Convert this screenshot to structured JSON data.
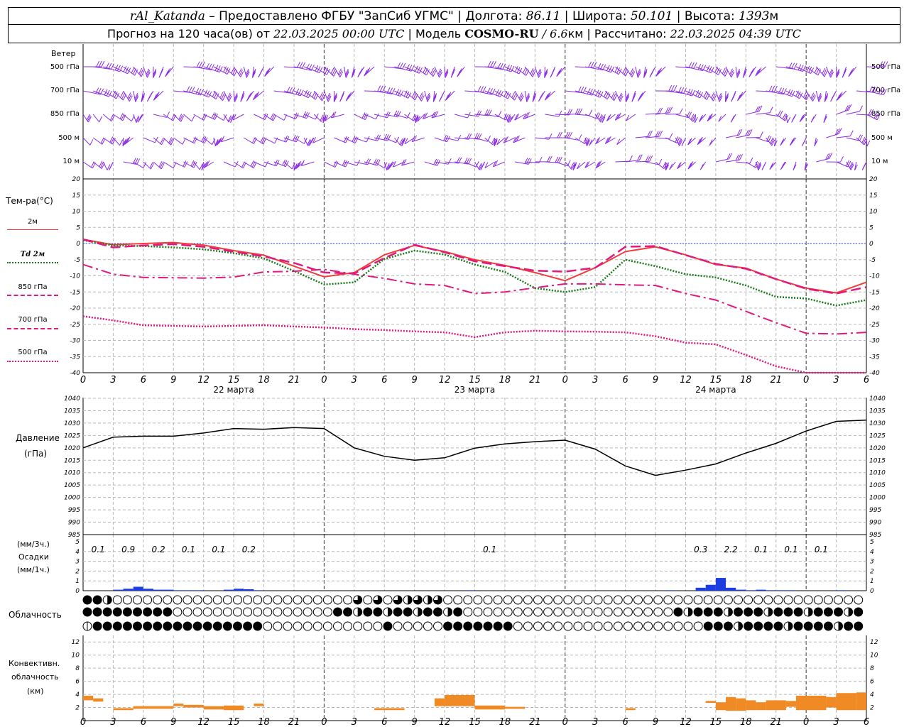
{
  "header": {
    "station": "rAl_Katanda",
    "provider": "– Предоставлено ФГБУ \"ЗапСиб УГМС\"",
    "lon_label": "Долгота:",
    "lon": "86.11",
    "lat_label": "Широта:",
    "lat": "50.101",
    "alt_label": "Высота:",
    "alt": "1393",
    "alt_unit": "м",
    "forecast_label": "Прогноз на 120 часа(ов) от",
    "forecast_start": "22.03.2025 00:00 UTC",
    "model_label": "Модель",
    "model": "COSMO-RU",
    "model_res": "/ 6.6",
    "model_res_unit": "км",
    "calc_label": "Рассчитано:",
    "calc_time": "22.03.2025 04:39 UTC"
  },
  "wind_panel": {
    "title": "Ветер",
    "levels": [
      "500 гПа",
      "700 гПа",
      "850 гПа",
      "500 м",
      "10  м"
    ]
  },
  "temp_panel": {
    "title": "Тем-ра(°C)",
    "legend": [
      {
        "label": "2м",
        "color": "#f23c3c",
        "style": "solid"
      },
      {
        "label": "Td  2м",
        "color": "#1a7a1a",
        "style": "dotted"
      },
      {
        "label": "850 гПа",
        "color": "#e0197d",
        "style": "dash"
      },
      {
        "label": "700 гПа",
        "color": "#e0197d",
        "style": "dashdot"
      },
      {
        "label": "500 гПа",
        "color": "#e0197d",
        "style": "dot"
      }
    ]
  },
  "pressure_panel": {
    "title": "Давление",
    "unit": "(гПа)"
  },
  "precip_panel": {
    "unit_top": "(мм/3ч.)",
    "title": "Осадки",
    "unit_bottom": "(мм/1ч.)"
  },
  "cloud_panel": {
    "title": "Облачность"
  },
  "conv_panel": {
    "title_l1": "Конвективн.",
    "title_l2": "облачность",
    "unit": "(км)"
  },
  "day_labels": [
    "22 марта",
    "23 марта",
    "24 марта"
  ],
  "hour_labels": [
    "0",
    "3",
    "6",
    "9",
    "12",
    "15",
    "18",
    "21",
    "0",
    "3",
    "6",
    "9",
    "12",
    "15",
    "18",
    "21",
    "0",
    "3",
    "6",
    "9",
    "12",
    "15",
    "18",
    "21",
    "0",
    "3",
    "6"
  ],
  "colors": {
    "wind": "#8a2be2",
    "t2m": "#f23c3c",
    "td2m": "#1a7a1a",
    "upper": "#e0197d",
    "pressure": "#000000",
    "precip": "#1c3de0",
    "conv": "#f08a24",
    "zero_line": "#3050e0"
  },
  "chart_data": [
    {
      "type": "line",
      "title": "Тем-ра(°C)",
      "ylim": [
        -40,
        20
      ],
      "x": [
        0,
        3,
        6,
        9,
        12,
        15,
        18,
        21,
        24,
        27,
        30,
        33,
        36,
        39,
        42,
        45,
        48,
        51,
        54,
        57,
        60,
        63,
        66,
        69,
        72,
        75,
        78
      ],
      "series": [
        {
          "name": "2м",
          "values": [
            1.3,
            -0.4,
            0.0,
            0.3,
            -0.5,
            -2.2,
            -3.6,
            -7.0,
            -10.3,
            -9.0,
            -3.5,
            -0.6,
            -2.5,
            -5.0,
            -6.8,
            -9.0,
            -11.5,
            -7.5,
            -2.5,
            -1.0,
            -3.5,
            -6.5,
            -7.6,
            -11.0,
            -13.8,
            -15.3,
            -12.0
          ]
        },
        {
          "name": "Td  2м",
          "values": [
            1.0,
            -0.6,
            -0.8,
            -1.2,
            -1.8,
            -3.0,
            -4.6,
            -8.5,
            -12.7,
            -12.0,
            -4.8,
            -2.2,
            -3.4,
            -6.5,
            -8.8,
            -13.8,
            -15.0,
            -13.5,
            -5.0,
            -7.0,
            -9.5,
            -10.5,
            -13.0,
            -16.5,
            -17.0,
            -19.2,
            -17.5
          ]
        },
        {
          "name": "850 гПа",
          "values": [
            1.3,
            -1.2,
            -0.6,
            -0.2,
            -1.0,
            -2.5,
            -4.0,
            -6.0,
            -9.0,
            -9.3,
            -4.5,
            -0.4,
            -2.7,
            -5.5,
            -7.0,
            -8.4,
            -8.7,
            -7.5,
            -1.0,
            -0.8,
            -3.6,
            -6.3,
            -7.8,
            -11.0,
            -14.0,
            -15.5,
            -13.5
          ]
        },
        {
          "name": "700 гПа",
          "values": [
            -6.5,
            -9.5,
            -10.5,
            -10.6,
            -10.7,
            -10.4,
            -8.8,
            -8.6,
            -8.0,
            -9.5,
            -10.8,
            -12.5,
            -13.0,
            -15.5,
            -15.0,
            -13.7,
            -12.5,
            -12.5,
            -12.8,
            -13.0,
            -15.5,
            -17.5,
            -21.0,
            -24.5,
            -27.8,
            -28.0,
            -27.5
          ]
        },
        {
          "name": "500 гПа",
          "values": [
            -22.5,
            -23.8,
            -25.3,
            -25.5,
            -25.7,
            -25.5,
            -25.3,
            -25.7,
            -26.0,
            -26.5,
            -26.8,
            -27.2,
            -27.5,
            -29.0,
            -27.5,
            -27.0,
            -27.2,
            -27.3,
            -27.5,
            -28.7,
            -30.7,
            -31.2,
            -34.5,
            -38.0,
            -40.0,
            -40.0,
            -40.0
          ]
        }
      ]
    },
    {
      "type": "line",
      "title": "Давление",
      "ylim": [
        985,
        1040
      ],
      "x": [
        0,
        3,
        6,
        9,
        12,
        15,
        18,
        21,
        24,
        27,
        30,
        33,
        36,
        39,
        42,
        45,
        48,
        51,
        54,
        57,
        60,
        63,
        66,
        69,
        72,
        75,
        78
      ],
      "series": [
        {
          "values": [
            1020,
            1024.3,
            1024.7,
            1024.7,
            1026,
            1027.8,
            1027.5,
            1028.2,
            1027.8,
            1020,
            1016.6,
            1015,
            1016,
            1019.9,
            1021.6,
            1022.5,
            1023.1,
            1019.5,
            1012.7,
            1008.9,
            1011.0,
            1013.5,
            1017.9,
            1021.8,
            1026.8,
            1030.7,
            1031.2
          ]
        }
      ]
    },
    {
      "type": "bar",
      "title": "Осадки",
      "ylim": [
        0,
        5
      ],
      "x": [
        3,
        4,
        5,
        6,
        7,
        8,
        9,
        10,
        11,
        14,
        15,
        16,
        17,
        38,
        58,
        61,
        62,
        63,
        64,
        65,
        66,
        67,
        68,
        69,
        70,
        75
      ],
      "values": [
        0.1,
        0.2,
        0.4,
        0.2,
        0.1,
        0.1,
        0.05,
        0.05,
        0.05,
        0.1,
        0.2,
        0.15,
        0.05,
        0.05,
        0.05,
        0.3,
        0.6,
        1.3,
        0.3,
        0.1,
        0.05,
        0.1,
        0.05,
        0.05,
        0.05,
        0.05
      ],
      "labels": [
        {
          "x": 1.5,
          "text": "0.1"
        },
        {
          "x": 4.5,
          "text": "0.9"
        },
        {
          "x": 7.5,
          "text": "0.2"
        },
        {
          "x": 10.5,
          "text": "0.1"
        },
        {
          "x": 13.5,
          "text": "0.1"
        },
        {
          "x": 16.5,
          "text": "0.2"
        },
        {
          "x": 40.5,
          "text": "0.1"
        },
        {
          "x": 61.5,
          "text": "0.3"
        },
        {
          "x": 64.5,
          "text": "2.2"
        },
        {
          "x": 67.5,
          "text": "0.1"
        },
        {
          "x": 70.5,
          "text": "0.1"
        },
        {
          "x": 73.5,
          "text": "0.1"
        }
      ]
    },
    {
      "type": "bar",
      "title": "Конвективн. облачность",
      "ylim": [
        0,
        13
      ],
      "segments": [
        [
          0,
          1,
          3.1,
          3.8
        ],
        [
          1,
          2,
          2.9,
          3.4
        ],
        [
          3,
          5,
          1.6,
          1.9
        ],
        [
          5,
          9,
          1.8,
          2.2
        ],
        [
          9,
          10,
          2.2,
          2.6
        ],
        [
          10,
          12,
          2.0,
          2.4
        ],
        [
          12,
          14,
          1.7,
          2.2
        ],
        [
          14,
          16,
          1.6,
          2.3
        ],
        [
          17,
          18,
          2.2,
          2.6
        ],
        [
          29,
          32,
          1.6,
          1.9
        ],
        [
          35,
          36,
          2.2,
          3.4
        ],
        [
          36,
          39,
          2.2,
          3.9
        ],
        [
          39,
          42,
          1.7,
          2.3
        ],
        [
          42,
          44,
          1.8,
          2.1
        ],
        [
          54,
          55,
          1.6,
          1.9
        ],
        [
          62,
          63,
          2.7,
          3.0
        ],
        [
          63,
          64,
          1.6,
          2.8
        ],
        [
          64,
          65,
          1.5,
          3.6
        ],
        [
          65,
          66,
          1.5,
          3.4
        ],
        [
          66,
          67,
          1.6,
          3.1
        ],
        [
          67,
          68,
          1.6,
          2.8
        ],
        [
          68,
          70,
          1.6,
          3.1
        ],
        [
          70,
          71,
          2.1,
          3.0
        ],
        [
          71,
          74,
          1.6,
          3.8
        ],
        [
          74,
          75,
          2.0,
          3.6
        ],
        [
          75,
          77,
          1.6,
          4.2
        ],
        [
          77,
          78,
          1.6,
          4.3
        ]
      ]
    }
  ]
}
